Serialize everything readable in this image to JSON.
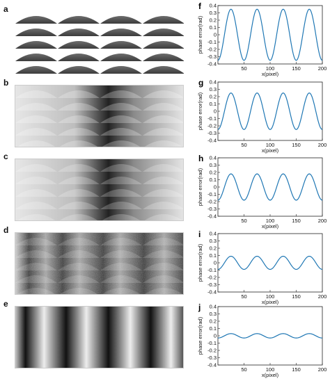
{
  "panels_left": [
    {
      "label": "a",
      "kind": "fringe-with-lenses"
    },
    {
      "label": "b",
      "kind": "dark-bands-with-lenses"
    },
    {
      "label": "c",
      "kind": "dark-bands-with-lenses"
    },
    {
      "label": "d",
      "kind": "noisy-bands"
    },
    {
      "label": "e",
      "kind": "smooth-bands"
    }
  ],
  "chart_data": [
    {
      "label": "f",
      "type": "line",
      "ylabel": "phase error(rad)",
      "xlabel": "x(pixel)",
      "xlim": [
        0,
        200
      ],
      "ylim": [
        -0.4,
        0.4
      ],
      "xticks": [
        50,
        100,
        150,
        200
      ],
      "yticks": [
        0.4,
        0.3,
        0.2,
        0.1,
        0,
        -0.1,
        -0.2,
        -0.3,
        -0.4
      ],
      "amplitude": 0.35,
      "period": 50,
      "color": "#1f77b4"
    },
    {
      "label": "g",
      "type": "line",
      "ylabel": "phase error(rad)",
      "xlabel": "x(pixel)",
      "xlim": [
        0,
        200
      ],
      "ylim": [
        -0.4,
        0.4
      ],
      "xticks": [
        50,
        100,
        150,
        200
      ],
      "yticks": [
        0.4,
        0.3,
        0.2,
        0.1,
        0,
        -0.1,
        -0.2,
        -0.3,
        -0.4
      ],
      "amplitude": 0.25,
      "period": 50,
      "color": "#1f77b4"
    },
    {
      "label": "h",
      "type": "line",
      "ylabel": "phase error(rad)",
      "xlabel": "x(pixel)",
      "xlim": [
        0,
        200
      ],
      "ylim": [
        -0.4,
        0.4
      ],
      "xticks": [
        50,
        100,
        150,
        200
      ],
      "yticks": [
        0.4,
        0.3,
        0.2,
        0.1,
        0,
        -0.1,
        -0.2,
        -0.3,
        -0.4
      ],
      "amplitude": 0.18,
      "period": 50,
      "color": "#1f77b4"
    },
    {
      "label": "i",
      "type": "line",
      "ylabel": "phase error(rad)",
      "xlabel": "x(pixel)",
      "xlim": [
        0,
        200
      ],
      "ylim": [
        -0.4,
        0.4
      ],
      "xticks": [
        50,
        100,
        150,
        200
      ],
      "yticks": [
        0.4,
        0.3,
        0.2,
        0.1,
        0,
        -0.1,
        -0.2,
        -0.3,
        -0.4
      ],
      "amplitude": 0.09,
      "period": 50,
      "color": "#1f77b4"
    },
    {
      "label": "j",
      "type": "line",
      "ylabel": "phase error(rad)",
      "xlabel": "x(pixel)",
      "xlim": [
        0,
        200
      ],
      "ylim": [
        -0.4,
        0.4
      ],
      "xticks": [
        50,
        100,
        150,
        200
      ],
      "yticks": [
        0.4,
        0.3,
        0.2,
        0.1,
        0,
        -0.1,
        -0.2,
        -0.3,
        -0.4
      ],
      "amplitude": 0.03,
      "period": 50,
      "color": "#1f77b4"
    }
  ]
}
